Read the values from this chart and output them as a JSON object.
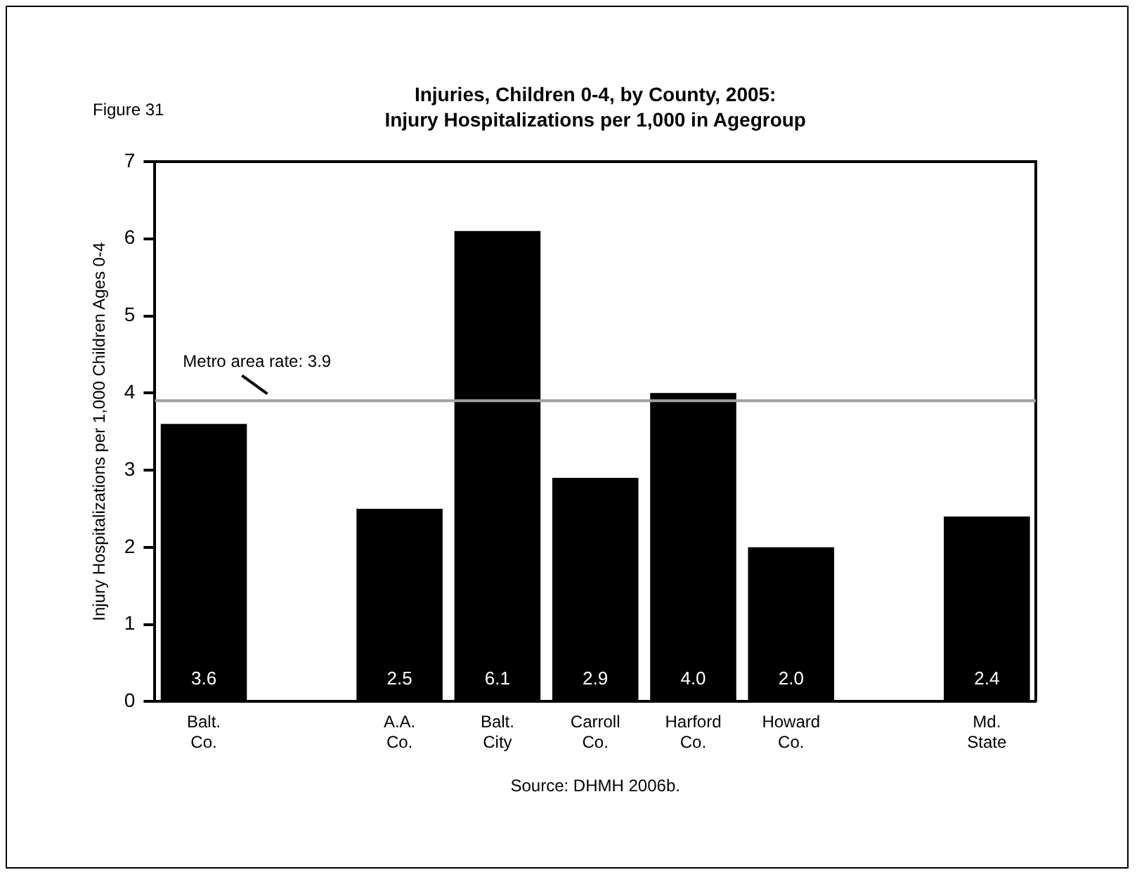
{
  "chart_data": {
    "type": "bar",
    "title": "Injuries, Children 0-4, by County, 2005:\nInjury Hospitalizations per 1,000 in Agegroup",
    "ylabel": "Injury Hospitalizations per 1,000 Children Ages 0-4",
    "categories": [
      "Balt. Co.",
      null,
      "A.A. Co.",
      "Balt. City",
      "Carroll Co.",
      "Harford Co.",
      "Howard Co.",
      null,
      "Md. State"
    ],
    "values": [
      3.6,
      null,
      2.5,
      6.1,
      2.9,
      4.0,
      2.0,
      null,
      2.4
    ],
    "value_labels": [
      "3.6",
      null,
      "2.5",
      "6.1",
      "2.9",
      "4.0",
      "2.0",
      null,
      "2.4"
    ],
    "color": "#000000",
    "ylim": [
      0,
      7
    ],
    "yticks": [
      0,
      1,
      2,
      3,
      4,
      5,
      6,
      7
    ],
    "grid": false,
    "legend": false,
    "ref_lines": [
      {
        "axis": "y",
        "value": 3.9,
        "label": "Metro area rate: 3.9",
        "color": "#a0a0a0"
      }
    ],
    "annotations": [
      "Figure 31",
      "Source: DHMH 2006b."
    ]
  }
}
